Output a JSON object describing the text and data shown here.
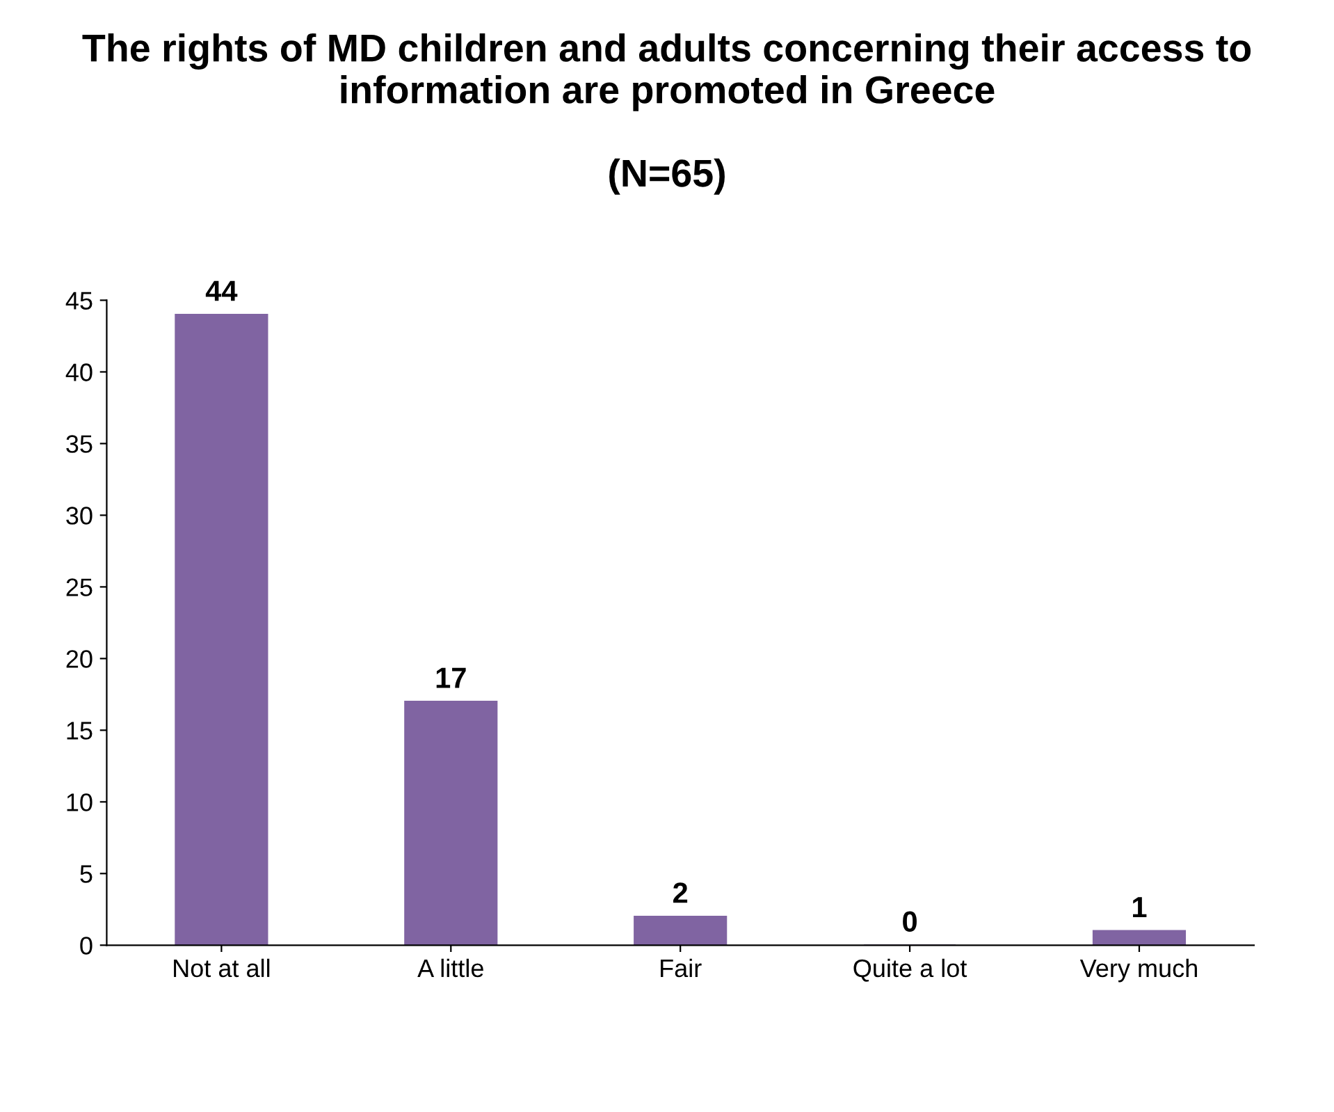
{
  "chart_data": {
    "type": "bar",
    "title": "The rights of MD children and adults concerning their access to information are promoted in Greece",
    "subtitle": "(N=65)",
    "categories": [
      "Not at all",
      "A little",
      "Fair",
      "Quite a lot",
      "Very much"
    ],
    "values": [
      44,
      17,
      2,
      0,
      1
    ],
    "color": "#8064a2",
    "ylim": [
      0,
      45
    ],
    "yticks": [
      0,
      5,
      10,
      15,
      20,
      25,
      30,
      35,
      40,
      45
    ],
    "grid": false,
    "data_labels": true
  }
}
